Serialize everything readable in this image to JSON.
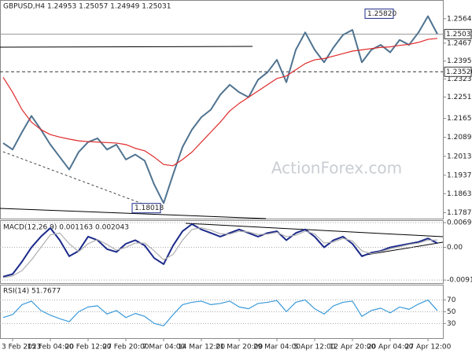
{
  "chart_data": [
    {
      "type": "line",
      "title": "GBPUSD,H4 1.24953 1.25057 1.24949 1.25031",
      "watermark": "ActionForex.com",
      "ylim": [
        1.1763,
        1.264
      ],
      "grid": false,
      "yticks": [
        {
          "value": 1.25649,
          "label": "1.25649"
        },
        {
          "value": 1.2467,
          "label": "1.24670"
        },
        {
          "value": 1.2395,
          "label": "1.23950"
        },
        {
          "value": 1.2323,
          "label": "1.23230"
        },
        {
          "value": 1.2251,
          "label": "1.22510"
        },
        {
          "value": 1.2165,
          "label": "1.21650"
        },
        {
          "value": 1.2089,
          "label": "1.20890"
        },
        {
          "value": 1.2013,
          "label": "1.20130"
        },
        {
          "value": 1.1937,
          "label": "1.19370"
        },
        {
          "value": 1.1863,
          "label": "1.18630"
        },
        {
          "value": 1.1787,
          "label": "1.17870"
        }
      ],
      "levels": [
        {
          "value": 1.25031,
          "label": "1.25031",
          "style": "solid"
        },
        {
          "value": 1.2352,
          "label": "1.23520",
          "style": "dashed"
        }
      ],
      "annotations": [
        {
          "value": 1.2582,
          "label": "1.25820"
        },
        {
          "value": 1.18018,
          "label": "1.18018"
        }
      ],
      "series": [
        {
          "name": "GBPUSD",
          "color": "#4f7390",
          "values": [
            1.2066,
            1.204,
            1.211,
            1.2175,
            1.212,
            1.206,
            1.201,
            1.196,
            1.203,
            1.207,
            1.2085,
            1.204,
            1.206,
            1.2,
            1.202,
            1.1995,
            1.19,
            1.1825,
            1.194,
            1.205,
            1.212,
            1.217,
            1.22,
            1.226,
            1.23,
            1.227,
            1.225,
            1.232,
            1.235,
            1.24,
            1.231,
            1.244,
            1.251,
            1.244,
            1.239,
            1.245,
            1.25,
            1.252,
            1.239,
            1.244,
            1.246,
            1.243,
            1.248,
            1.246,
            1.251,
            1.2575,
            1.25031
          ]
        },
        {
          "name": "MA",
          "color": "#e02a2a",
          "values": [
            1.233,
            1.227,
            1.22,
            1.215,
            1.212,
            1.21,
            1.209,
            1.2082,
            1.2075,
            1.2072,
            1.207,
            1.2068,
            1.2066,
            1.206,
            1.2045,
            1.2035,
            1.201,
            1.198,
            1.1975,
            1.2,
            1.203,
            1.207,
            1.211,
            1.215,
            1.2195,
            1.2225,
            1.225,
            1.2275,
            1.23,
            1.2325,
            1.2335,
            1.236,
            1.2385,
            1.24,
            1.2405,
            1.2415,
            1.2425,
            1.2435,
            1.244,
            1.2445,
            1.245,
            1.2452,
            1.2458,
            1.2462,
            1.247,
            1.2482,
            1.2486
          ]
        }
      ]
    },
    {
      "type": "line",
      "title": "MACD(12,26,9) 0.001163 0.002043",
      "ylim": [
        -0.01,
        0.0076
      ],
      "grid": true,
      "yticks": [
        0.0069,
        {
          "value": 0,
          "label": "0.00"
        },
        -0.009158
      ],
      "series": [
        {
          "name": "MACD",
          "color": "#1c2a8a",
          "values": [
            -0.0082,
            -0.0075,
            -0.004,
            0,
            0.003,
            0.0054,
            0.002,
            -0.0025,
            -0.001,
            0.003,
            0.002,
            -0.0005,
            -0.0013,
            0.001,
            0.002,
            0.0005,
            -0.003,
            -0.0047,
            0.0005,
            0.0045,
            0.0065,
            0.005,
            0.004,
            0.003,
            0.004,
            0.005,
            0.004,
            0.003,
            0.004,
            0.0045,
            0.002,
            0.004,
            0.005,
            0.003,
            0,
            0.002,
            0.003,
            0.001,
            -0.0025,
            -0.0015,
            -0.001,
            0,
            0.0005,
            0.001,
            0.0015,
            0.0025,
            0.001163
          ]
        },
        {
          "name": "Signal",
          "color": "#b0b0b0",
          "values": [
            -0.0085,
            -0.008,
            -0.0065,
            -0.0035,
            0,
            0.0035,
            0.004,
            0.001,
            -0.0012,
            0.001,
            0.0022,
            0.0008,
            -0.0008,
            0,
            0.0012,
            0.0012,
            -0.001,
            -0.0035,
            -0.002,
            0.002,
            0.005,
            0.0055,
            0.0048,
            0.0038,
            0.0037,
            0.0045,
            0.0043,
            0.0036,
            0.0037,
            0.0042,
            0.003,
            0.0034,
            0.0045,
            0.0038,
            0.0012,
            0.0015,
            0.0025,
            0.0018,
            -0.001,
            -0.0018,
            -0.0012,
            -0.0004,
            0.0002,
            0.0008,
            0.0012,
            0.002,
            0.002043
          ]
        }
      ]
    },
    {
      "type": "line",
      "title": "RSI(14) 51.7677",
      "ylim": [
        5,
        96
      ],
      "grid": true,
      "yticks": [
        70,
        50,
        30
      ],
      "categories": [
        null,
        "3 Feb 2023",
        null,
        null,
        null,
        "15 Feb 04:00",
        null,
        null,
        null,
        "20 Feb 12:00",
        null,
        null,
        null,
        "27 Feb 20:00",
        null,
        null,
        null,
        "7 Mar 04:00",
        null,
        null,
        null,
        "14 Mar 12:00",
        null,
        null,
        null,
        "21 Mar 20:00",
        null,
        null,
        null,
        "29 Mar 04:00",
        null,
        null,
        null,
        "5 Apr 12:00",
        null,
        null,
        null,
        "12 Apr 20:00",
        null,
        null,
        null,
        "20 Apr 04:00",
        null,
        null,
        null,
        "27 Apr 12:00",
        null
      ],
      "series": [
        {
          "name": "RSI",
          "color": "#3a9ad9",
          "values": [
            40,
            45,
            62,
            68,
            52,
            44,
            38,
            33,
            50,
            58,
            60,
            46,
            52,
            40,
            47,
            42,
            30,
            26,
            45,
            62,
            66,
            68,
            62,
            64,
            68,
            58,
            55,
            64,
            66,
            69,
            50,
            66,
            70,
            55,
            46,
            60,
            66,
            68,
            42,
            52,
            56,
            48,
            58,
            54,
            63,
            70,
            51.7677
          ]
        }
      ]
    }
  ]
}
